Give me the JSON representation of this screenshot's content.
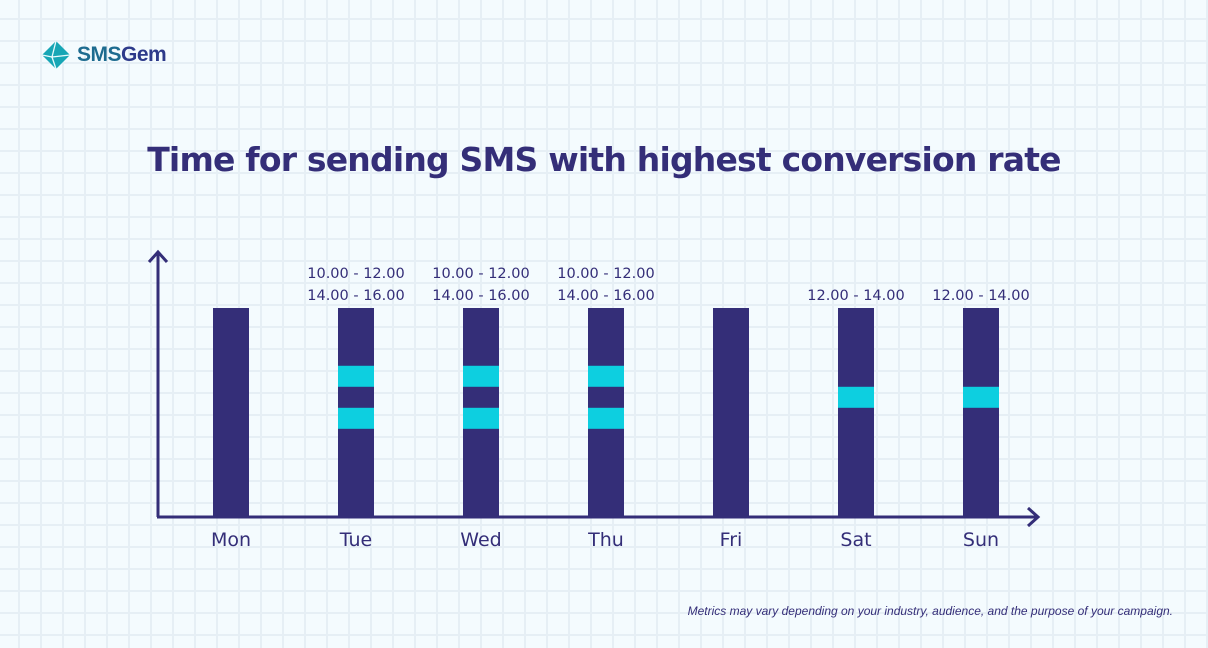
{
  "logo": {
    "text": "SMSGem",
    "text_a": "SMS",
    "text_b": "Gem"
  },
  "title": "Time for sending SMS with highest conversion rate",
  "footnote": "Metrics may vary depending on your industry, audience, and the purpose of your campaign.",
  "colors": {
    "bar": "#342e78",
    "highlight": "#0dcfe0",
    "axis": "#342e78"
  },
  "chart_data": {
    "type": "bar",
    "title": "Time for sending SMS with highest conversion rate",
    "xlabel": "",
    "ylabel": "",
    "hour_range": [
      4.5,
      24.3
    ],
    "categories": [
      "Mon",
      "Tue",
      "Wed",
      "Thu",
      "Fri",
      "Sat",
      "Sun"
    ],
    "days": [
      {
        "day": "Mon",
        "labels": [],
        "slots": []
      },
      {
        "day": "Tue",
        "labels": [
          "10.00 - 12.00",
          "14.00 - 16.00"
        ],
        "slots": [
          [
            10,
            12
          ],
          [
            14,
            16
          ]
        ]
      },
      {
        "day": "Wed",
        "labels": [
          "10.00 - 12.00",
          "14.00 - 16.00"
        ],
        "slots": [
          [
            10,
            12
          ],
          [
            14,
            16
          ]
        ]
      },
      {
        "day": "Thu",
        "labels": [
          "10.00 - 12.00",
          "14.00 - 16.00"
        ],
        "slots": [
          [
            10,
            12
          ],
          [
            14,
            16
          ]
        ]
      },
      {
        "day": "Fri",
        "labels": [],
        "slots": []
      },
      {
        "day": "Sat",
        "labels": [
          "12.00 - 14.00"
        ],
        "slots": [
          [
            12,
            14
          ]
        ]
      },
      {
        "day": "Sun",
        "labels": [
          "12.00 - 14.00"
        ],
        "slots": [
          [
            12,
            14
          ]
        ]
      }
    ]
  }
}
